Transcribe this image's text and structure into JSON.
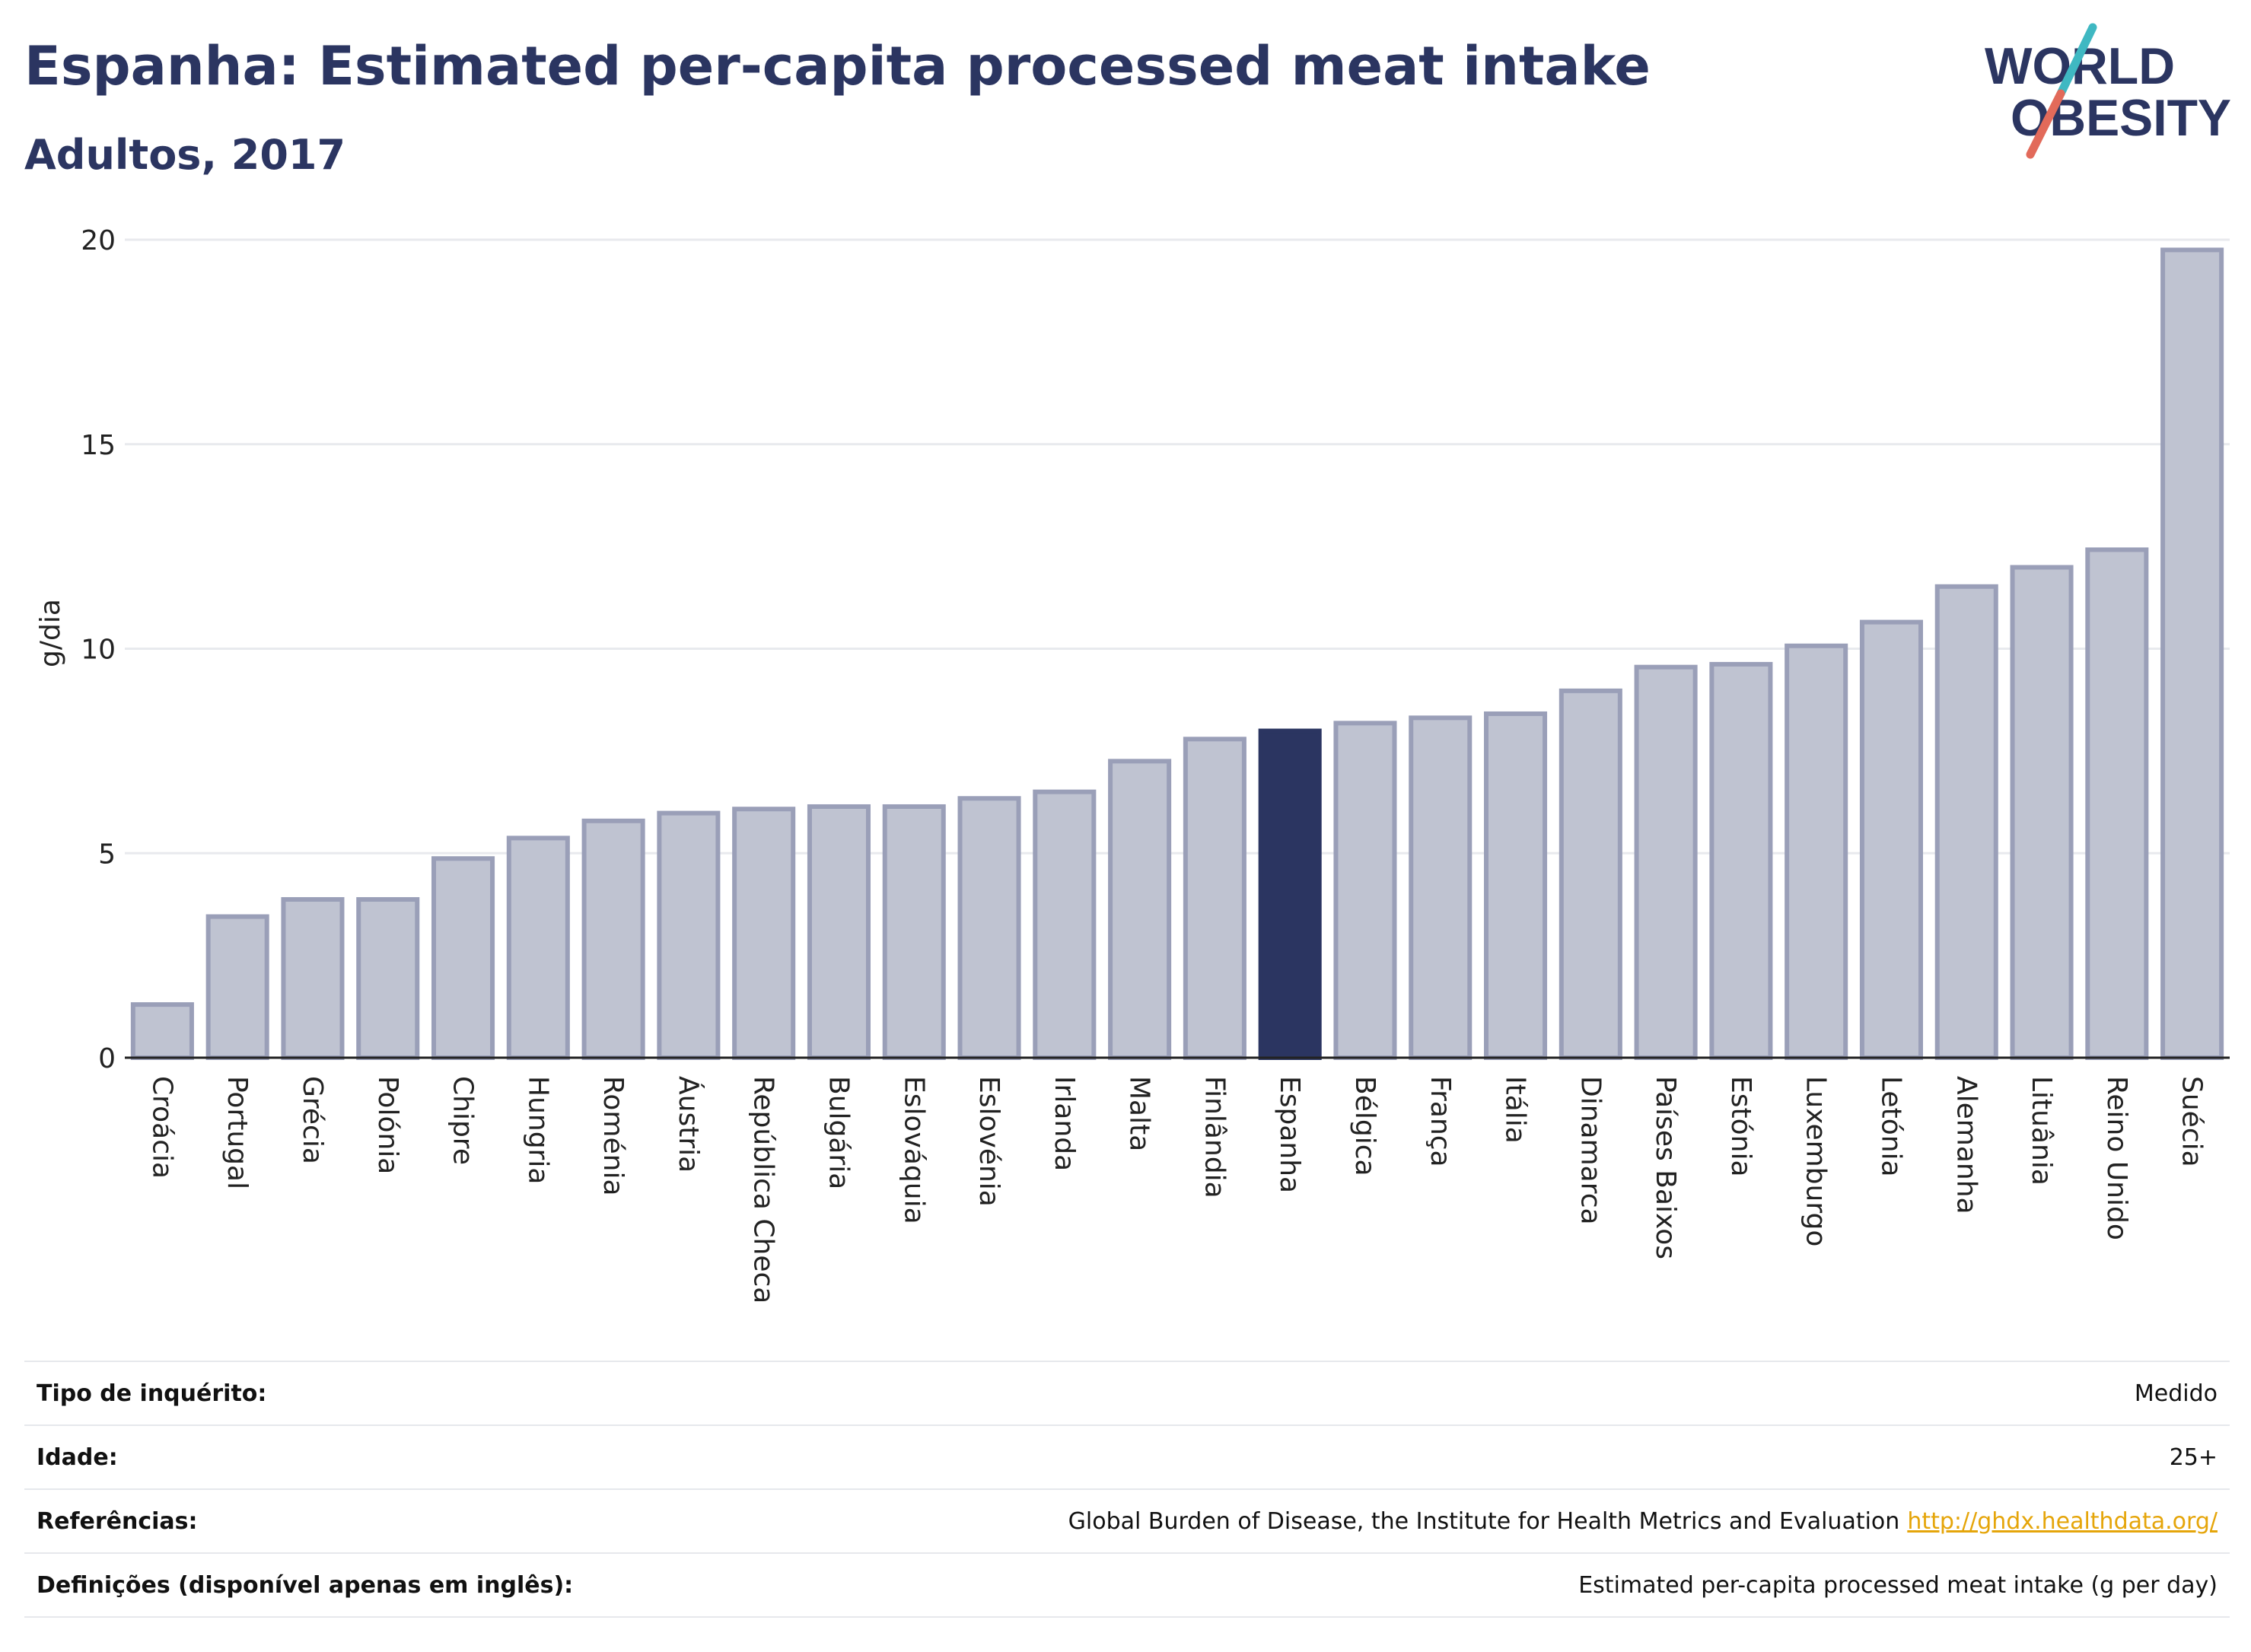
{
  "header": {
    "title": "Espanha: Estimated per-capita processed meat intake",
    "subtitle": "Adultos, 2017"
  },
  "logo": {
    "line1": "WORLD",
    "line2": "OBESITY",
    "accent_teal": "#3fb8c2",
    "accent_red": "#e26a5a"
  },
  "chart_data": {
    "type": "bar",
    "ylabel": "g/dia",
    "ylim": [
      0,
      20
    ],
    "yticks": [
      0,
      5,
      10,
      15,
      20
    ],
    "grid": true,
    "highlight": "Espanha",
    "colors": {
      "bar": "#bfc3d1",
      "bar_border": "#9a9fb8",
      "highlight": "#2b3561"
    },
    "categories": [
      "Croácia",
      "Portugal",
      "Grécia",
      "Polónia",
      "Chipre",
      "Hungria",
      "Roménia",
      "Áustria",
      "República Checa",
      "Bulgária",
      "Eslováquia",
      "Eslovénia",
      "Irlanda",
      "Malta",
      "Finlândia",
      "Espanha",
      "Bélgica",
      "França",
      "Itália",
      "Dinamarca",
      "Países Baixos",
      "Estónia",
      "Luxemburgo",
      "Letónia",
      "Alemanha",
      "Lituânia",
      "Reino Unido",
      "Suécia"
    ],
    "values": [
      1.3,
      3.45,
      3.87,
      3.87,
      4.87,
      5.37,
      5.79,
      5.98,
      6.08,
      6.14,
      6.14,
      6.34,
      6.5,
      7.25,
      7.79,
      7.99,
      8.18,
      8.31,
      8.41,
      8.97,
      9.55,
      9.62,
      10.07,
      10.65,
      11.52,
      11.99,
      12.42,
      19.75
    ]
  },
  "info": {
    "rows": [
      {
        "label": "Tipo de inquérito:",
        "value": "Medido"
      },
      {
        "label": "Idade:",
        "value": "25+"
      },
      {
        "label": "Referências:",
        "value": "Global Burden of Disease, the Institute for Health Metrics and Evaluation",
        "link": "http://ghdx.healthdata.org/"
      },
      {
        "label": "Definições (disponível apenas em inglês):",
        "value": "Estimated per-capita processed meat intake (g per day)"
      }
    ]
  }
}
